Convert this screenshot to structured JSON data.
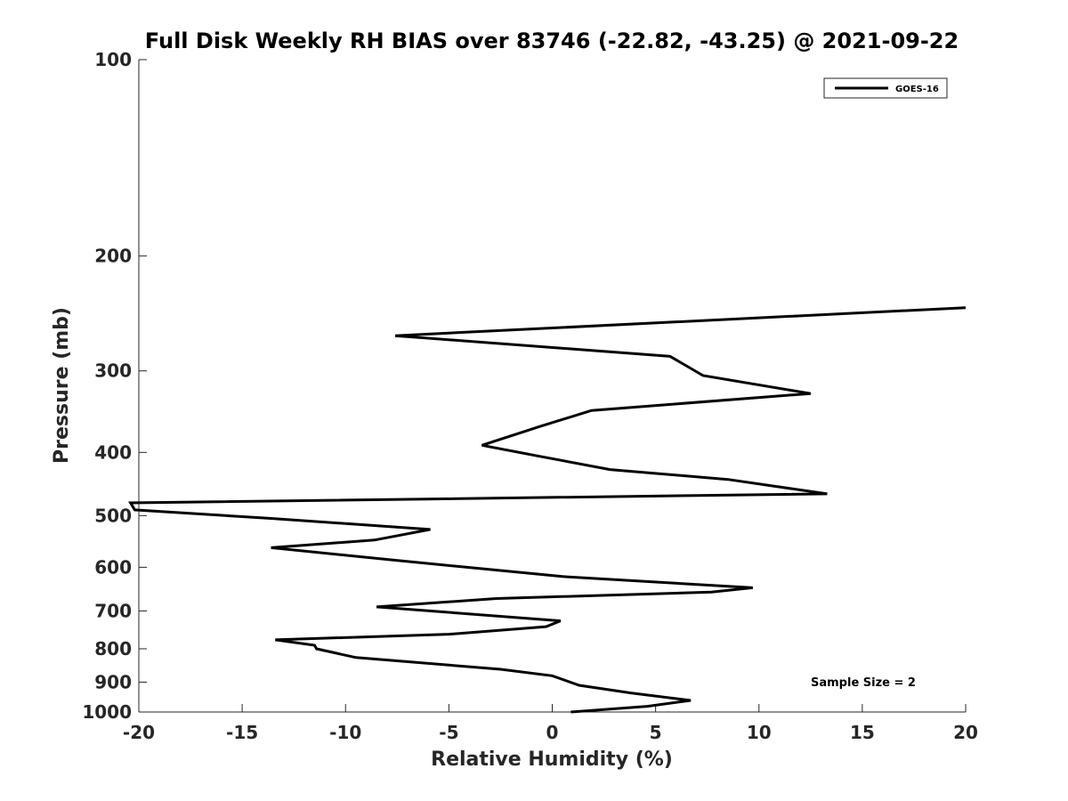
{
  "chart_data": {
    "type": "line",
    "title": "Full Disk Weekly RH BIAS over 83746 (-22.82, -43.25) @ 2021-09-22",
    "xlabel": "Relative Humidity (%)",
    "ylabel": "Pressure (mb)",
    "xlim": [
      -20,
      20
    ],
    "ylim": [
      100,
      1000
    ],
    "y_scale": "log",
    "y_reversed": true,
    "x_ticks": [
      -20,
      -15,
      -10,
      -5,
      0,
      5,
      10,
      15,
      20
    ],
    "y_ticks": [
      100,
      200,
      300,
      400,
      500,
      600,
      700,
      800,
      900,
      1000
    ],
    "grid": false,
    "legend_placement": "top-right",
    "series": [
      {
        "name": "GOES-16",
        "color": "#000000",
        "x": [
          0.9,
          4.6,
          6.7,
          3.8,
          1.3,
          0.0,
          -2.5,
          -9.5,
          -11.4,
          -11.5,
          -13.4,
          -5.0,
          -0.3,
          0.4,
          -8.5,
          -2.7,
          7.7,
          9.7,
          0.5,
          -7.7,
          -13.6,
          -8.6,
          -5.9,
          -13.6,
          -20.2,
          -20.4,
          13.3,
          8.5,
          2.8,
          -0.7,
          -3.4,
          -0.6,
          1.9,
          12.5,
          7.3,
          5.7,
          -7.6,
          20.0
        ],
        "y": [
          1000,
          980,
          960,
          935,
          910,
          880,
          860,
          825,
          800,
          790,
          775,
          760,
          740,
          725,
          690,
          670,
          655,
          645,
          620,
          585,
          560,
          545,
          525,
          505,
          490,
          478,
          463,
          440,
          425,
          405,
          390,
          365,
          345,
          325,
          305,
          285,
          265,
          240
        ]
      }
    ],
    "annotations": [
      {
        "text": "Sample Size = 2"
      }
    ]
  }
}
